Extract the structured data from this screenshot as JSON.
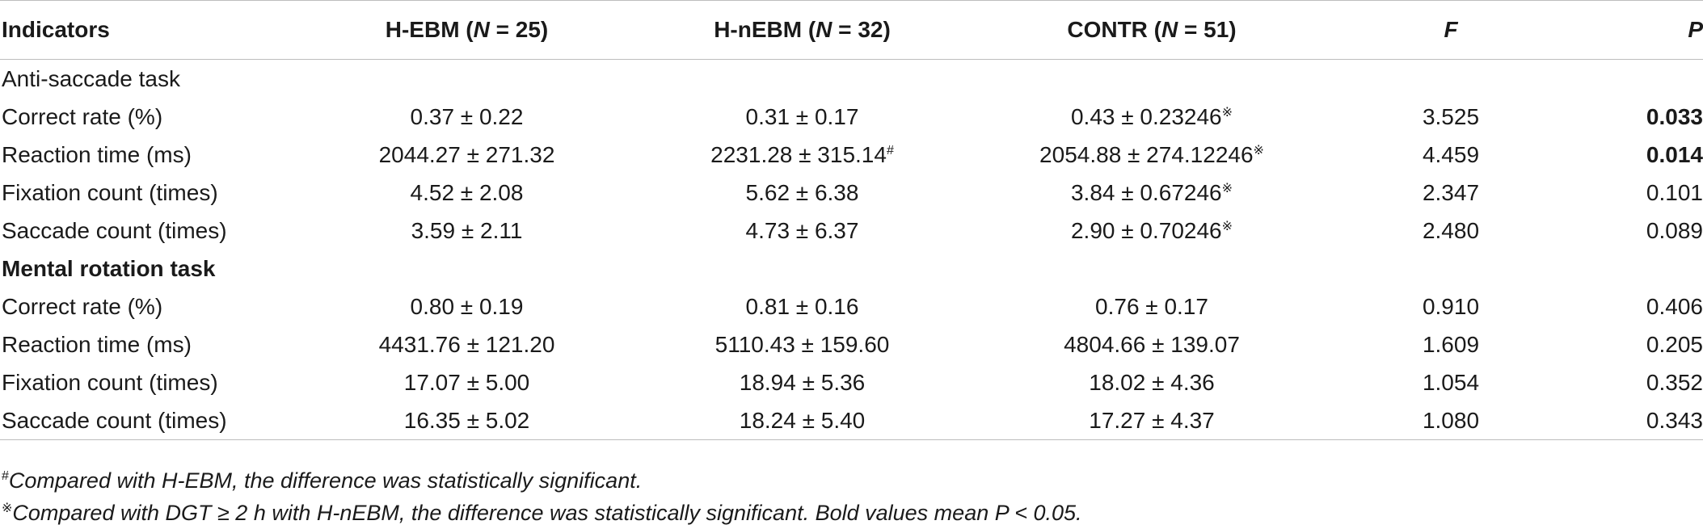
{
  "header": {
    "indicators": "Indicators",
    "g1_name": "H-EBM (",
    "g1_n": "N",
    "g1_tail": " = 25)",
    "g2_name": "H-nEBM (",
    "g2_n": "N",
    "g2_tail": " = 32)",
    "g3_name": "CONTR (",
    "g3_n": "N",
    "g3_tail": " = 51)",
    "f": "F",
    "p": "P"
  },
  "sections": {
    "anti": "Anti-saccade task",
    "mental": "Mental rotation task"
  },
  "rows": [
    {
      "label": "Correct rate (%)",
      "g1": "0.37 ± 0.22",
      "g2": "0.31 ± 0.17",
      "g2_mark": "",
      "g3": "0.43 ± 0.23246",
      "g3_mark": "※",
      "f": "3.525",
      "p": "0.033"
    },
    {
      "label": "Reaction time (ms)",
      "g1": "2044.27 ± 271.32",
      "g2": "2231.28 ± 315.14",
      "g2_mark": "#",
      "g3": "2054.88 ± 274.12246",
      "g3_mark": "※",
      "f": "4.459",
      "p": "0.014"
    },
    {
      "label": "Fixation count (times)",
      "g1": "4.52 ± 2.08",
      "g2": "5.62 ± 6.38",
      "g2_mark": "",
      "g3": "3.84 ± 0.67246",
      "g3_mark": "※",
      "f": "2.347",
      "p": "0.101"
    },
    {
      "label": "Saccade count (times)",
      "g1": "3.59 ± 2.11",
      "g2": "4.73 ± 6.37",
      "g2_mark": "",
      "g3": "2.90 ± 0.70246",
      "g3_mark": "※",
      "f": "2.480",
      "p": "0.089"
    },
    {
      "label": "Correct rate (%)",
      "g1": "0.80 ± 0.19",
      "g2": "0.81 ± 0.16",
      "g2_mark": "",
      "g3": "0.76 ± 0.17",
      "g3_mark": "",
      "f": "0.910",
      "p": "0.406"
    },
    {
      "label": "Reaction time (ms)",
      "g1": "4431.76 ± 121.20",
      "g2": "5110.43 ± 159.60",
      "g2_mark": "",
      "g3": "4804.66 ± 139.07",
      "g3_mark": "",
      "f": "1.609",
      "p": "0.205"
    },
    {
      "label": "Fixation count (times)",
      "g1": "17.07 ± 5.00",
      "g2": "18.94 ± 5.36",
      "g2_mark": "",
      "g3": "18.02 ± 4.36",
      "g3_mark": "",
      "f": "1.054",
      "p": "0.352"
    },
    {
      "label": "Saccade count (times)",
      "g1": "16.35 ± 5.02",
      "g2": "18.24 ± 5.40",
      "g2_mark": "",
      "g3": "17.27 ± 4.37",
      "g3_mark": "",
      "f": "1.080",
      "p": "0.343"
    }
  ],
  "notes": {
    "n1_mark": "#",
    "n1": "Compared with H-EBM, the difference was statistically significant.",
    "n2_mark": "※",
    "n2": "Compared with DGT ≥ 2 h with H-nEBM, the difference was statistically significant. Bold values mean P < 0.05."
  }
}
